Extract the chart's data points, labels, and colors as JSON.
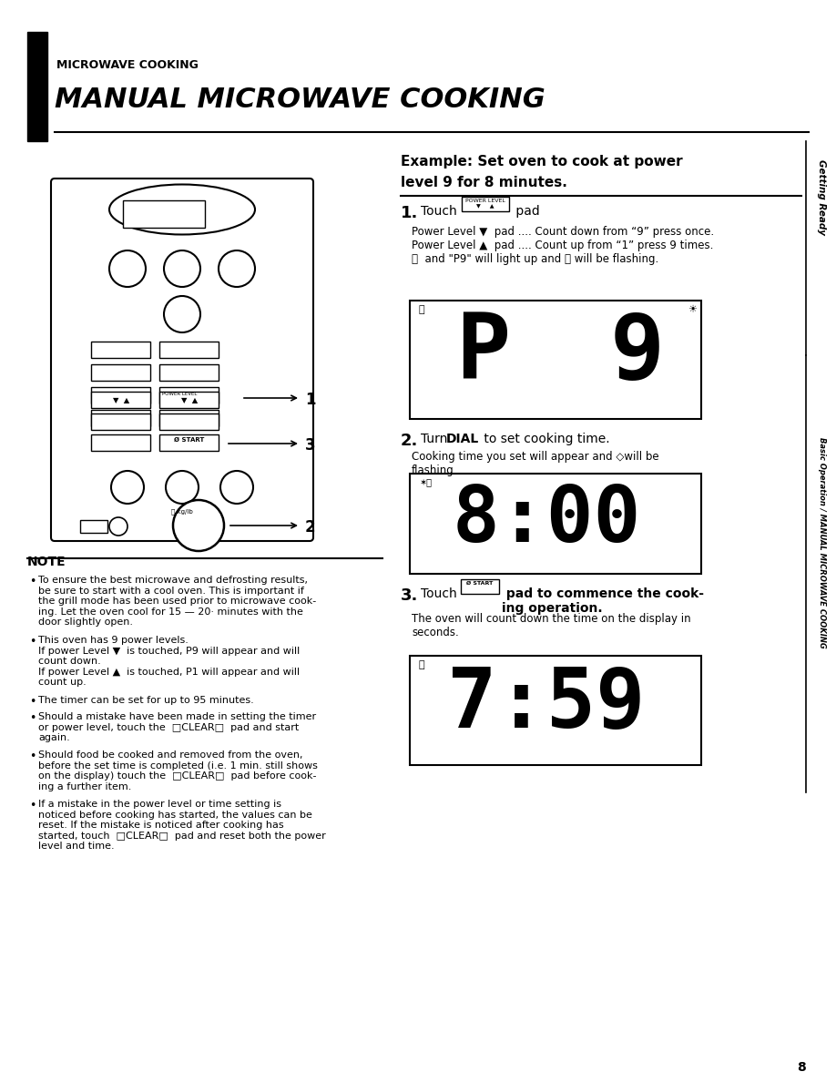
{
  "page_bg": "#ffffff",
  "title_small": "MICROWAVE COOKING",
  "title_large": "MANUAL MICROWAVE COOKING",
  "example_title": "Example: Set oven to cook at power\nlevel 9 for 8 minutes.",
  "sidebar_text": "Getting Ready",
  "sidebar_text2": "Basic Operation / MANUAL MICROWAVE COOKING",
  "step1_num": "1.",
  "step1_text": "Touch",
  "step1_pad": "POWER LEVEL\n▼  ▲",
  "step1_rest": " pad",
  "step1_body": "Power Level ▼  pad .... Count down from “9”\npress once.\nPower Level ▲  pad .... Count up from “1” press 9\ntimes.\n⎕  and “P9” will light up and ⓘ will be flash-\ning.",
  "step2_num": "2.",
  "step2_text": "Turn DIAL to set cooking time.",
  "step2_body": "Cooking time you set will appear and ◇will be\nflashing.",
  "step3_num": "3.",
  "step3_text": "Touch",
  "step3_pad_text": "Ø START",
  "step3_rest": " pad to commence the cook-\ning operation.",
  "step3_body": "The oven will count down the time on the display in\nseconds.",
  "note_title": "NOTE",
  "note_bullets": [
    "To ensure the best microwave and defrosting results, be sure to start with a cool oven. This is important if the grill mode has been used prior to microwave cooking. Let the oven cool for 15 — 20· minutes with the door slightly open.",
    "This oven has 9 power levels.\nIf power Level ▼  is touched, P9 will appear and will count down.\nIf power Level ▲  is touched, P1 will appear and will count up.",
    "The timer can be set for up to 95 minutes.",
    "Should a mistake have been made in setting the timer\nor power level, touch the  CLEAR  pad and start\nagain.",
    "Should food be cooked and removed from the oven,\nbefore the set time is completed (i.e. 1 min. still shows\non the display) touch the  CLEAR  pad before cook-\ning a further item.",
    "If a mistake in the power level or time setting is noticed before cooking has started, the values can be reset. If the mistake is noticed after cooking has started, touch  CLEAR  pad and reset both the power level and time."
  ],
  "page_number": "8"
}
